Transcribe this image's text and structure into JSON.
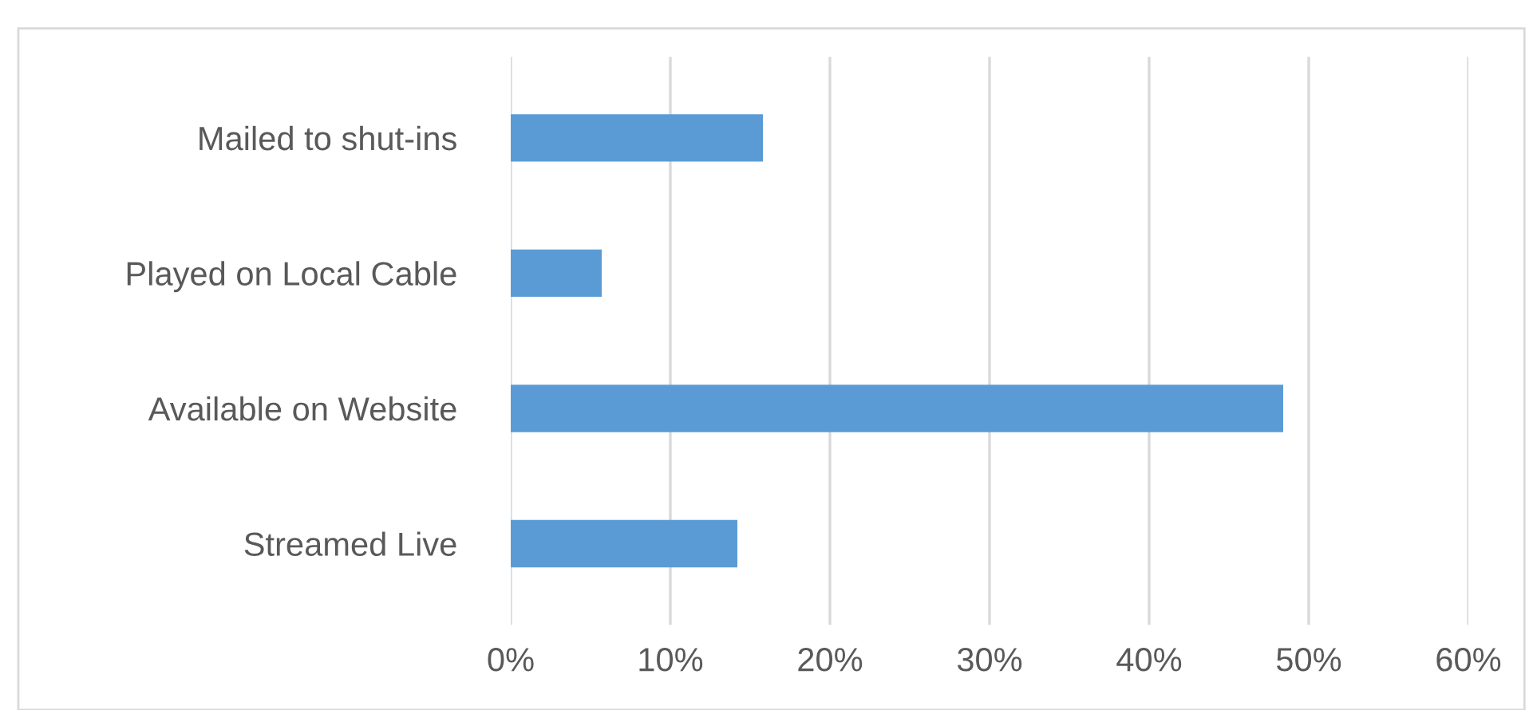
{
  "chart_data": {
    "type": "bar",
    "orientation": "horizontal",
    "categories": [
      "Mailed to shut-ins",
      "Played on Local Cable",
      "Available on Website",
      "Streamed Live"
    ],
    "values": [
      15.8,
      5.7,
      48.4,
      14.2
    ],
    "color": "#5b9bd5",
    "xlim": [
      0,
      60
    ],
    "xticks": [
      {
        "value": 0,
        "label": "0%"
      },
      {
        "value": 10,
        "label": "10%"
      },
      {
        "value": 20,
        "label": "20%"
      },
      {
        "value": 30,
        "label": "30%"
      },
      {
        "value": 40,
        "label": "40%"
      },
      {
        "value": 50,
        "label": "50%"
      },
      {
        "value": 60,
        "label": "60%"
      }
    ],
    "grid": "x",
    "legend": false
  }
}
